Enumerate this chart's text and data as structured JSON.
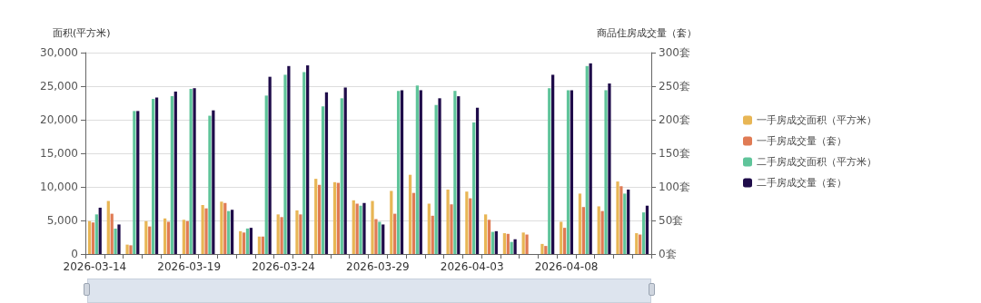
{
  "chart_data": {
    "type": "bar",
    "ylabel": "面积(平方米)",
    "y2label": "商品住房成交量（套）",
    "categories": [
      "2026-03-14",
      null,
      null,
      null,
      null,
      "2026-03-19",
      null,
      null,
      null,
      null,
      "2026-03-24",
      null,
      null,
      null,
      null,
      "2026-03-29",
      null,
      null,
      null,
      null,
      "2026-04-03",
      null,
      null,
      null,
      null,
      "2026-04-08",
      null,
      null,
      null,
      null
    ],
    "series": [
      {
        "name": "一手房成交面积（平方米）",
        "color": "#e8b655",
        "values": [
          4900,
          7900,
          1400,
          4900,
          5300,
          5100,
          7300,
          7800,
          3400,
          2600,
          5900,
          6500,
          11200,
          10700,
          8000,
          7900,
          9400,
          11800,
          7500,
          9600,
          9300,
          5900,
          3100,
          3200,
          1500,
          4800,
          9000,
          7100,
          10800,
          3100
        ]
      },
      {
        "name": "一手房成交量（套）",
        "color": "#e07b54",
        "axis": "y2",
        "values": [
          47,
          60,
          13,
          41,
          48,
          49,
          68,
          76,
          32,
          26,
          55,
          59,
          103,
          106,
          75,
          52,
          60,
          91,
          57,
          74,
          83,
          51,
          30,
          29,
          12,
          39,
          70,
          64,
          101,
          29
        ]
      },
      {
        "name": "二手房成交面积（平方米）",
        "color": "#5fc49a",
        "values": [
          5900,
          3800,
          21300,
          23100,
          23500,
          24600,
          20600,
          6400,
          3800,
          23600,
          26700,
          27100,
          22000,
          23200,
          7200,
          4800,
          24300,
          25100,
          22200,
          24300,
          19600,
          3300,
          1800,
          null,
          24700,
          24400,
          28000,
          24400,
          9000,
          6200
        ]
      },
      {
        "name": "二手房成交量（套）",
        "color": "#1f0c4a",
        "axis": "y2",
        "values": [
          69,
          44,
          213,
          233,
          242,
          247,
          214,
          66,
          39,
          264,
          280,
          281,
          241,
          248,
          76,
          44,
          244,
          244,
          232,
          235,
          218,
          34,
          22,
          null,
          267,
          244,
          284,
          254,
          96,
          72
        ]
      }
    ],
    "ylim": [
      0,
      30000
    ],
    "yticks": [
      0,
      {
        "value": 5000,
        "label": "5,000"
      },
      {
        "value": 10000,
        "label": "10,000"
      },
      {
        "value": 15000,
        "label": "15,000"
      },
      {
        "value": 20000,
        "label": "20,000"
      },
      {
        "value": 25000,
        "label": "25,000"
      },
      {
        "value": 30000,
        "label": "30,000"
      }
    ],
    "y2lim": [
      0,
      300
    ],
    "y2ticks": [
      {
        "value": 0,
        "label": "0套"
      },
      {
        "value": 50,
        "label": "50套"
      },
      {
        "value": 100,
        "label": "100套"
      },
      {
        "value": 150,
        "label": "150套"
      },
      {
        "value": 200,
        "label": "200套"
      },
      {
        "value": 250,
        "label": "250套"
      },
      {
        "value": 300,
        "label": "300套"
      }
    ],
    "grid": "y",
    "legend": "right"
  }
}
